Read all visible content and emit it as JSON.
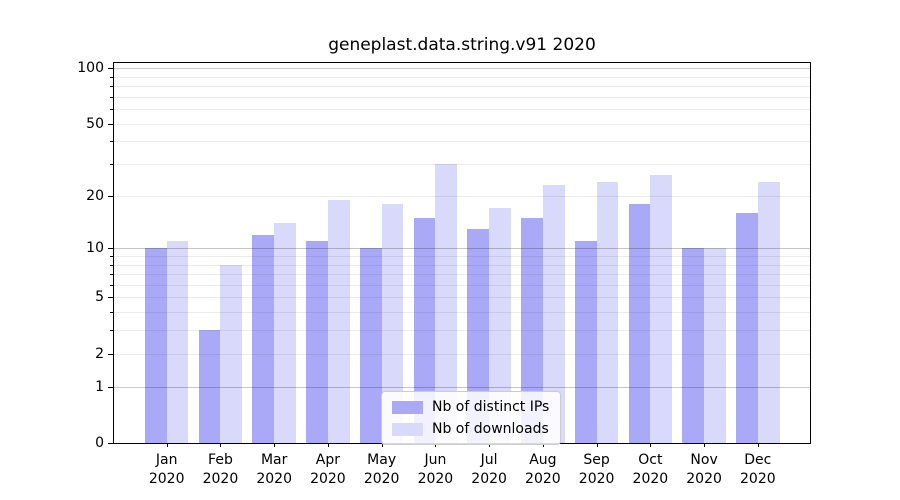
{
  "title": "geneplast.data.string.v91 2020",
  "chart_data": {
    "type": "bar",
    "title": "geneplast.data.string.v91 2020",
    "categories": [
      "Jan 2020",
      "Feb 2020",
      "Mar 2020",
      "Apr 2020",
      "May 2020",
      "Jun 2020",
      "Jul 2020",
      "Aug 2020",
      "Sep 2020",
      "Oct 2020",
      "Nov 2020",
      "Dec 2020"
    ],
    "series": [
      {
        "name": "Nb of distinct IPs",
        "color": "#a9a9f7",
        "values": [
          10,
          3,
          12,
          11,
          10,
          15,
          13,
          15,
          11,
          18,
          10,
          16
        ]
      },
      {
        "name": "Nb of downloads",
        "color": "#d9d9fb",
        "values": [
          11,
          8,
          14,
          19,
          18,
          30,
          17,
          23,
          24,
          26,
          10,
          24
        ]
      }
    ],
    "xlabel": "",
    "ylabel": "",
    "yscale": "log1p",
    "ylim": [
      0,
      100
    ],
    "yticks": [
      0,
      1,
      2,
      5,
      10,
      20,
      50,
      100
    ],
    "minor_gridlines": [
      2,
      3,
      4,
      5,
      6,
      7,
      8,
      9,
      20,
      30,
      40,
      50,
      60,
      70,
      80,
      90
    ],
    "major_gridlines": [
      1,
      10,
      100
    ],
    "grid": true,
    "legend_position": "lower center",
    "colors": {
      "axis": "#000000",
      "background": "#ffffff",
      "grid_major": "#c7c7c7",
      "grid_minor": "#ececec"
    }
  }
}
